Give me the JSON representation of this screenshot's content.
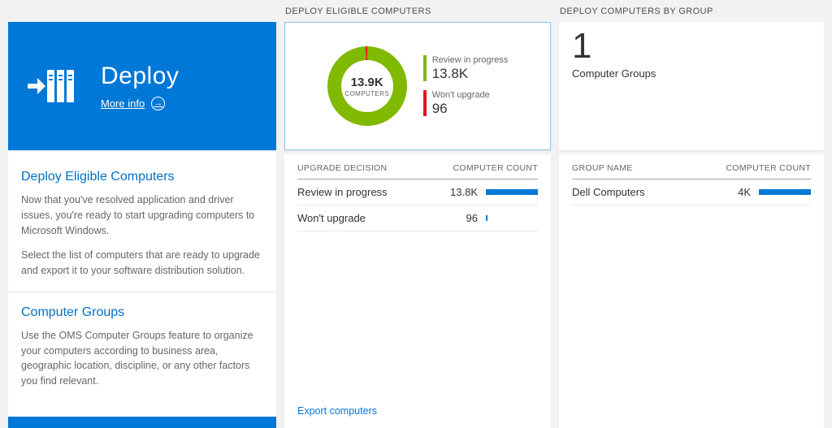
{
  "colors": {
    "accent": "#0078d7",
    "heading_blue": "#0072c6",
    "green": "#7fba00",
    "red": "#e81123"
  },
  "left_panel": {
    "title": "Deploy",
    "more_info": "More info",
    "sections": [
      {
        "heading": "Deploy Eligible Computers",
        "paragraphs": [
          "Now that you've resolved application and driver issues, you're ready to start upgrading computers to Microsoft Windows.",
          "Select the list of computers that are ready to upgrade and export it to your software distribution solution."
        ]
      },
      {
        "heading": "Computer Groups",
        "paragraphs": [
          "Use the OMS Computer Groups feature to organize your computers according to business area, geographic location, discipline, or any other factors you find relevant."
        ]
      }
    ]
  },
  "middle_panel": {
    "header": "DEPLOY ELIGIBLE COMPUTERS",
    "donut": {
      "value": "13.9K",
      "label": "COMPUTERS"
    },
    "legend": [
      {
        "label": "Review in progress",
        "value": "13.8K",
        "color": "#7fba00"
      },
      {
        "label": "Won't upgrade",
        "value": "96",
        "color": "#e81123"
      }
    ],
    "table": {
      "columns": [
        "UPGRADE DECISION",
        "COMPUTER COUNT"
      ],
      "rows": [
        {
          "label": "Review in progress",
          "value": "13.8K",
          "bar_pct": 100
        },
        {
          "label": "Won't upgrade",
          "value": "96",
          "bar_pct": 1
        }
      ]
    },
    "action": "Export computers"
  },
  "right_panel": {
    "header": "DEPLOY COMPUTERS BY GROUP",
    "count": "1",
    "count_label": "Computer Groups",
    "table": {
      "columns": [
        "GROUP NAME",
        "COMPUTER COUNT"
      ],
      "rows": [
        {
          "label": "Dell Computers",
          "value": "4K",
          "bar_pct": 100
        }
      ]
    }
  },
  "chart_data": {
    "type": "pie",
    "title": "DEPLOY ELIGIBLE COMPUTERS",
    "labels": [
      "Review in progress",
      "Won't upgrade"
    ],
    "values": [
      13800,
      96
    ],
    "colors": [
      "#7fba00",
      "#e81123"
    ],
    "center_value": "13.9K",
    "center_label": "COMPUTERS",
    "legend_position": "right"
  }
}
